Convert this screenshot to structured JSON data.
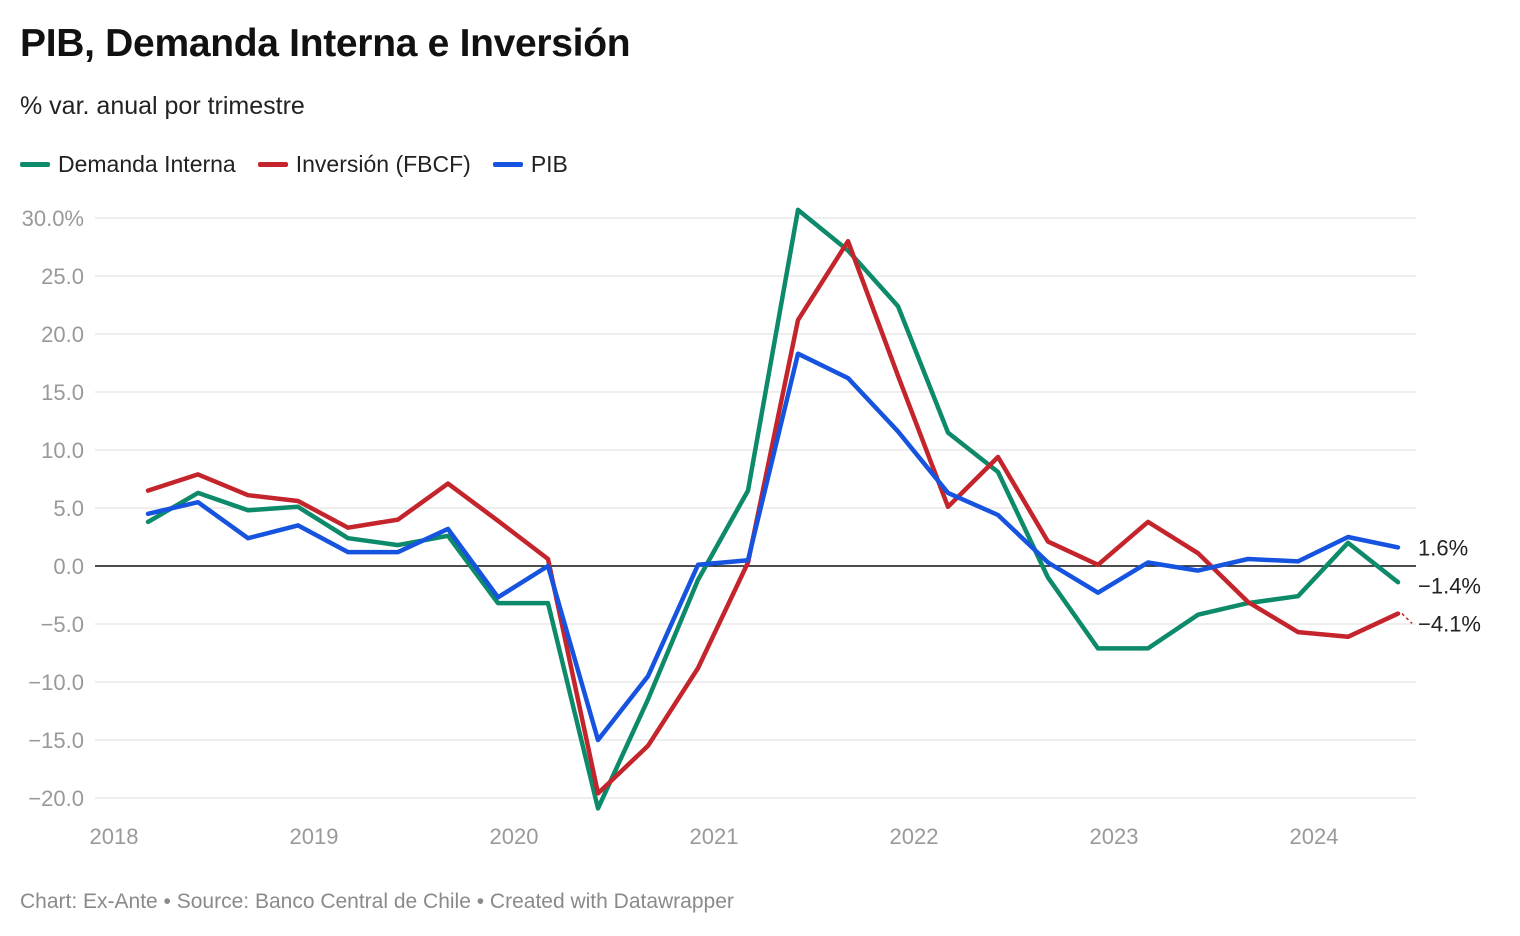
{
  "header": {
    "title": "PIB, Demanda Interna e Inversión",
    "subtitle": "% var. anual por trimestre"
  },
  "footer": {
    "credit": "Chart: Ex-Ante • Source: Banco Central de Chile • Created with Datawrapper"
  },
  "chart_data": {
    "type": "line",
    "title": "PIB, Demanda Interna e Inversión",
    "subtitle": "% var. anual por trimestre",
    "xlabel": "",
    "ylabel": "",
    "ylim": [
      -20,
      30
    ],
    "grid": true,
    "legend_position": "top-left",
    "y_ticks": [
      30,
      25,
      20,
      15,
      10,
      5,
      0,
      -5,
      -10,
      -15,
      -20
    ],
    "y_tick_labels": [
      "30.0%",
      "25.0",
      "20.0",
      "15.0",
      "10.0",
      "5.0",
      "0.0",
      "−5.0",
      "−10.0",
      "−15.0",
      "−20.0"
    ],
    "x_ticks": [
      "2018",
      "2019",
      "2020",
      "2021",
      "2022",
      "2023",
      "2024"
    ],
    "x": [
      "2018 Q1",
      "2018 Q2",
      "2018 Q3",
      "2018 Q4",
      "2019 Q1",
      "2019 Q2",
      "2019 Q3",
      "2019 Q4",
      "2020 Q1",
      "2020 Q2",
      "2020 Q3",
      "2020 Q4",
      "2021 Q1",
      "2021 Q2",
      "2021 Q3",
      "2021 Q4",
      "2022 Q1",
      "2022 Q2",
      "2022 Q3",
      "2022 Q4",
      "2023 Q1",
      "2023 Q2",
      "2023 Q3",
      "2023 Q4",
      "2024 Q1",
      "2024 Q2"
    ],
    "series": [
      {
        "name": "Demanda Interna",
        "color": "#0c8a6a",
        "values": [
          3.8,
          6.3,
          4.8,
          5.1,
          2.4,
          1.8,
          2.6,
          -3.2,
          -3.2,
          -20.9,
          -11.5,
          -1.2,
          6.5,
          30.7,
          27.2,
          22.4,
          11.5,
          8.1,
          -1.0,
          -7.1,
          -7.1,
          -4.2,
          -3.2,
          -2.6,
          2.0,
          -1.4
        ],
        "end_label": "−1.4%"
      },
      {
        "name": "Inversión (FBCF)",
        "color": "#c4242b",
        "values": [
          6.5,
          7.9,
          6.1,
          5.6,
          3.3,
          4.0,
          7.1,
          3.9,
          0.6,
          -19.6,
          -15.5,
          -8.8,
          0.3,
          21.2,
          28.0,
          16.4,
          5.1,
          9.4,
          2.1,
          0.1,
          3.8,
          1.1,
          -3.1,
          -5.7,
          -6.1,
          -4.1
        ],
        "end_label": "−4.1%"
      },
      {
        "name": "PIB",
        "color": "#1654e0",
        "values": [
          4.5,
          5.5,
          2.4,
          3.5,
          1.2,
          1.2,
          3.2,
          -2.7,
          0.0,
          -15.0,
          -9.5,
          0.1,
          0.5,
          18.3,
          16.2,
          11.6,
          6.3,
          4.4,
          0.3,
          -2.3,
          0.3,
          -0.4,
          0.6,
          0.4,
          2.5,
          1.6
        ],
        "end_label": "1.6%"
      }
    ]
  }
}
